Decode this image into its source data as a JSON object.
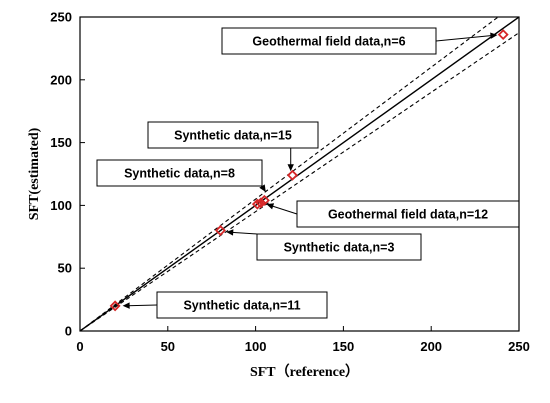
{
  "chart_data": {
    "type": "scatter",
    "xlabel": "SFT（reference）",
    "ylabel": "SFT(estimated)",
    "xlim": [
      0,
      250
    ],
    "ylim": [
      0,
      250
    ],
    "xticks": [
      0,
      50,
      100,
      150,
      200,
      250
    ],
    "yticks": [
      0,
      50,
      100,
      150,
      200,
      250
    ],
    "grid": false,
    "reference_lines": [
      {
        "style": "solid",
        "slope": 1.0
      },
      {
        "style": "dashed",
        "slope": 1.05
      },
      {
        "style": "dashed",
        "slope": 0.95
      }
    ],
    "series": [
      {
        "marker": "diamond",
        "color": "#d62728",
        "points": [
          {
            "x": 20,
            "y": 20
          },
          {
            "x": 80,
            "y": 80
          },
          {
            "x": 101,
            "y": 101
          },
          {
            "x": 103,
            "y": 102
          },
          {
            "x": 105,
            "y": 104
          },
          {
            "x": 121,
            "y": 124
          },
          {
            "x": 241,
            "y": 236
          }
        ]
      }
    ],
    "annotations": [
      {
        "text": "Geothermal field data,n=6",
        "x": 240,
        "y": 236
      },
      {
        "text": "Synthetic data,n=15",
        "x": 120,
        "y": 124
      },
      {
        "text": "Synthetic data,n=8",
        "x": 107,
        "y": 108
      },
      {
        "text": "Geothermal field data,n=12",
        "x": 104,
        "y": 102
      },
      {
        "text": "Synthetic data,n=3",
        "x": 81,
        "y": 79
      },
      {
        "text": "Synthetic data,n=11",
        "x": 22,
        "y": 20
      }
    ]
  }
}
